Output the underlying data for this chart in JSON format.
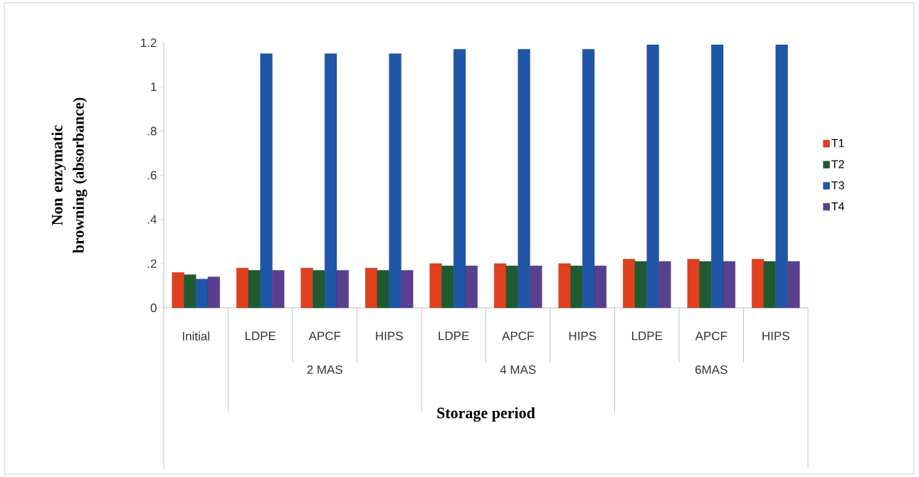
{
  "chart_data": {
    "type": "bar",
    "ylabel": "Non enzymatic browning (absorbance)",
    "xlabel": "Storage period",
    "categories": [
      "Initial",
      "LDPE",
      "APCF",
      "HIPS",
      "LDPE",
      "APCF",
      "HIPS",
      "LDPE",
      "APCF",
      "HIPS"
    ],
    "annotations": [
      "2 MAS",
      "4 MAS",
      "6MAS"
    ],
    "series": [
      {
        "name": "T1",
        "color": "#e0401f",
        "values": [
          0.16,
          0.18,
          0.18,
          0.18,
          0.2,
          0.2,
          0.2,
          0.22,
          0.22,
          0.22
        ]
      },
      {
        "name": "T2",
        "color": "#1f5a30",
        "values": [
          0.15,
          0.17,
          0.17,
          0.17,
          0.19,
          0.19,
          0.19,
          0.21,
          0.21,
          0.21
        ]
      },
      {
        "name": "T3",
        "color": "#1f56a8",
        "values": [
          0.13,
          1.15,
          1.15,
          1.15,
          1.17,
          1.17,
          1.17,
          1.19,
          1.19,
          1.19
        ]
      },
      {
        "name": "T4",
        "color": "#5a3f8f",
        "values": [
          0.14,
          0.17,
          0.17,
          0.17,
          0.19,
          0.19,
          0.19,
          0.21,
          0.21,
          0.21
        ]
      }
    ],
    "ylim": [
      0,
      1.2
    ],
    "yticks": [
      0,
      {
        "value": 0.2,
        "label": ".2"
      },
      {
        "value": 0.4,
        "label": ".4"
      },
      {
        "value": 0.6,
        "label": ".6"
      },
      {
        "value": 0.8,
        "label": ".8"
      },
      1,
      1.2
    ],
    "legend": "right"
  }
}
